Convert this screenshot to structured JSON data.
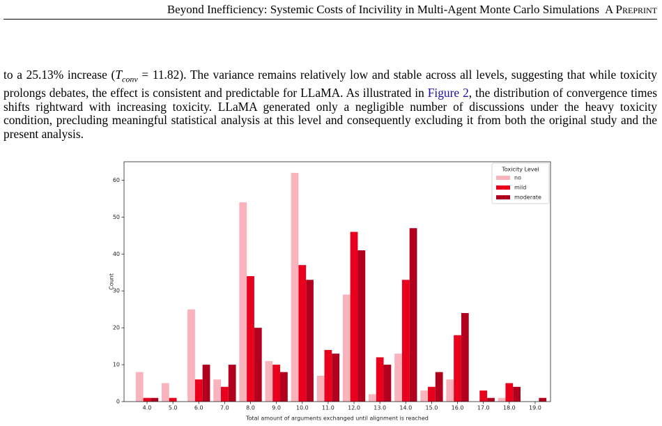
{
  "header": {
    "title": "Beyond Inefficiency: Systemic Costs of Incivility in Multi-Agent Monte Carlo Simulations",
    "tag": "A Preprint"
  },
  "paragraph": {
    "lead": "to a 25.13% increase (",
    "math_symbol": "T",
    "math_subscript": "conv",
    "math_rest": " = 11.82",
    "middle": "). The variance remains relatively low and stable across all levels, suggesting that while toxicity prolongs debates, the effect is consistent and predictable for LLaMA. As illustrated in ",
    "link": "Figure 2",
    "tail": ", the distribution of convergence times shifts rightward with increasing toxicity. LLaMA generated only a negligible number of discussions under the heavy toxicity condition, precluding meaningful statistical analysis at this level and consequently excluding it from both the original study and the present analysis."
  },
  "chart_data": {
    "type": "bar",
    "x_label": "Total amount of arguments exchanged until alignment is reached",
    "y_label": "Count",
    "categories": [
      "4.0",
      "5.0",
      "6.0",
      "7.0",
      "8.0",
      "9.0",
      "10.0",
      "11.0",
      "12.0",
      "13.0",
      "14.0",
      "15.0",
      "16.0",
      "17.0",
      "18.0",
      "19.0"
    ],
    "series": [
      {
        "name": "no",
        "color": "#f9b3bd",
        "values": [
          8,
          5,
          25,
          6,
          54,
          11,
          62,
          7,
          29,
          2,
          13,
          3,
          6,
          0,
          1,
          0
        ]
      },
      {
        "name": "mild",
        "color": "#e8001c",
        "values": [
          1,
          1,
          6,
          4,
          34,
          10,
          37,
          14,
          46,
          12,
          33,
          4,
          18,
          3,
          5,
          0
        ]
      },
      {
        "name": "moderate",
        "color": "#b0001e",
        "values": [
          1,
          0,
          10,
          10,
          20,
          8,
          33,
          13,
          41,
          10,
          47,
          8,
          24,
          1,
          4,
          1
        ]
      }
    ],
    "legend_title": "Toxicity Level",
    "legend_position": "upper right",
    "ylim": [
      0,
      65
    ],
    "yticks": [
      0,
      10,
      20,
      30,
      40,
      50,
      60
    ],
    "grid": false
  }
}
